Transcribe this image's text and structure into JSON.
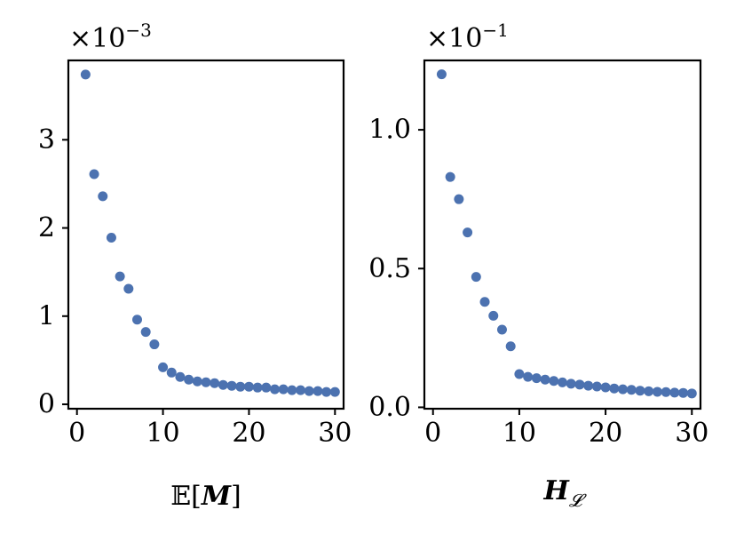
{
  "chart_data": [
    {
      "type": "scatter",
      "xlabel": "𝔼[M]",
      "xlabel_parts": {
        "prefix": "𝔼[",
        "bold": "M",
        "suffix": "]"
      },
      "y_multiplier_base": "×10",
      "y_multiplier_exp": "−3",
      "xlim": [
        -1,
        31
      ],
      "ylim": [
        -0.05,
        3.9
      ],
      "xticks": [
        0,
        10,
        20,
        30
      ],
      "xtick_labels": [
        "0",
        "10",
        "20",
        "30"
      ],
      "yticks": [
        0,
        1,
        2,
        3
      ],
      "ytick_labels": [
        "0",
        "1",
        "2",
        "3"
      ],
      "color": "#4c72b0",
      "grid": false,
      "x": [
        1,
        2,
        3,
        4,
        5,
        6,
        7,
        8,
        9,
        10,
        11,
        12,
        13,
        14,
        15,
        16,
        17,
        18,
        19,
        20,
        21,
        22,
        23,
        24,
        25,
        26,
        27,
        28,
        29,
        30
      ],
      "y": [
        3.74,
        2.61,
        2.36,
        1.89,
        1.45,
        1.31,
        0.96,
        0.82,
        0.68,
        0.42,
        0.36,
        0.31,
        0.28,
        0.26,
        0.25,
        0.24,
        0.22,
        0.21,
        0.2,
        0.2,
        0.19,
        0.19,
        0.17,
        0.17,
        0.16,
        0.16,
        0.15,
        0.15,
        0.14,
        0.14
      ]
    },
    {
      "type": "scatter",
      "xlabel": "H_𝓛",
      "xlabel_parts": {
        "bold": "H",
        "sub": "𝓛"
      },
      "y_multiplier_base": "×10",
      "y_multiplier_exp": "−1",
      "xlim": [
        -1,
        31
      ],
      "ylim": [
        -0.005,
        1.25
      ],
      "xticks": [
        0,
        10,
        20,
        30
      ],
      "xtick_labels": [
        "0",
        "10",
        "20",
        "30"
      ],
      "yticks": [
        0.0,
        0.5,
        1.0
      ],
      "ytick_labels": [
        "0.0",
        "0.5",
        "1.0"
      ],
      "color": "#4c72b0",
      "grid": false,
      "x": [
        1,
        2,
        3,
        4,
        5,
        6,
        7,
        8,
        9,
        10,
        11,
        12,
        13,
        14,
        15,
        16,
        17,
        18,
        19,
        20,
        21,
        22,
        23,
        24,
        25,
        26,
        27,
        28,
        29,
        30
      ],
      "y": [
        1.2,
        0.83,
        0.75,
        0.63,
        0.47,
        0.38,
        0.33,
        0.28,
        0.22,
        0.12,
        0.11,
        0.105,
        0.1,
        0.095,
        0.09,
        0.085,
        0.082,
        0.078,
        0.075,
        0.072,
        0.068,
        0.065,
        0.063,
        0.06,
        0.058,
        0.056,
        0.055,
        0.053,
        0.052,
        0.05
      ]
    }
  ]
}
